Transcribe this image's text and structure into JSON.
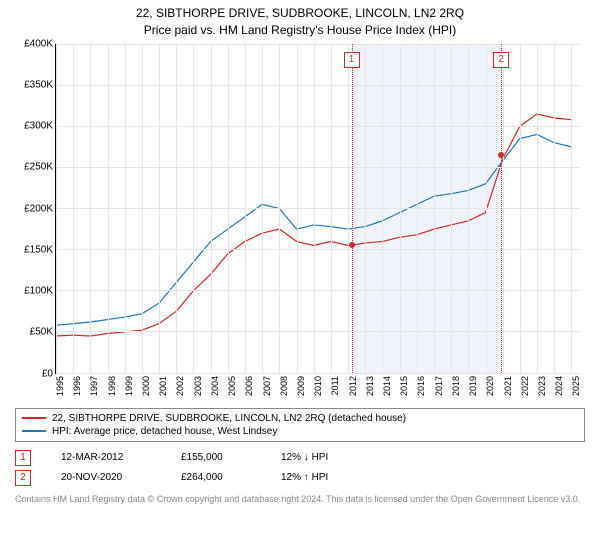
{
  "title_line1": "22, SIBTHORPE DRIVE, SUDBROOKE, LINCOLN, LN2 2RQ",
  "title_line2": "Price paid vs. HM Land Registry's House Price Index (HPI)",
  "chart": {
    "ylabel_prefix": "£",
    "ylabel_suffix": "K",
    "ylim": [
      0,
      400
    ],
    "ytick_step": 50,
    "x_years": [
      1995,
      1996,
      1997,
      1998,
      1999,
      2000,
      2001,
      2002,
      2003,
      2004,
      2005,
      2006,
      2007,
      2008,
      2009,
      2010,
      2011,
      2012,
      2013,
      2014,
      2015,
      2016,
      2017,
      2018,
      2019,
      2020,
      2021,
      2022,
      2023,
      2024,
      2025
    ],
    "xlim": [
      1995,
      2025.5
    ],
    "shade_x": [
      2012.2,
      2020.9
    ],
    "grid_color": "#e5e5e5",
    "series": [
      {
        "name": "price",
        "color": "#d62728",
        "width": 1.2,
        "y": [
          45,
          46,
          45,
          48,
          50,
          52,
          60,
          75,
          100,
          120,
          145,
          160,
          170,
          175,
          160,
          155,
          160,
          155,
          158,
          160,
          165,
          168,
          175,
          180,
          185,
          195,
          260,
          300,
          315,
          310,
          308
        ]
      },
      {
        "name": "hpi",
        "color": "#1f77b4",
        "width": 1.2,
        "y": [
          58,
          60,
          62,
          65,
          68,
          72,
          85,
          110,
          135,
          160,
          175,
          190,
          205,
          200,
          175,
          180,
          178,
          175,
          178,
          185,
          195,
          205,
          215,
          218,
          222,
          230,
          258,
          285,
          290,
          280,
          275
        ]
      }
    ],
    "markers": [
      {
        "num": "1",
        "x": 2012.2,
        "y": 155
      },
      {
        "num": "2",
        "x": 2020.9,
        "y": 264
      }
    ]
  },
  "legend": [
    {
      "color": "#d62728",
      "label": "22, SIBTHORPE DRIVE, SUDBROOKE, LINCOLN, LN2 2RQ (detached house)"
    },
    {
      "color": "#1f77b4",
      "label": "HPI: Average price, detached house, West Lindsey"
    }
  ],
  "marker_rows": [
    {
      "num": "1",
      "date": "12-MAR-2012",
      "price": "£155,000",
      "delta": "12% ↓ HPI"
    },
    {
      "num": "2",
      "date": "20-NOV-2020",
      "price": "£264,000",
      "delta": "12% ↑ HPI"
    }
  ],
  "footer": "Contains HM Land Registry data © Crown copyright and database right 2024.\nThis data is licensed under the Open Government Licence v3.0."
}
